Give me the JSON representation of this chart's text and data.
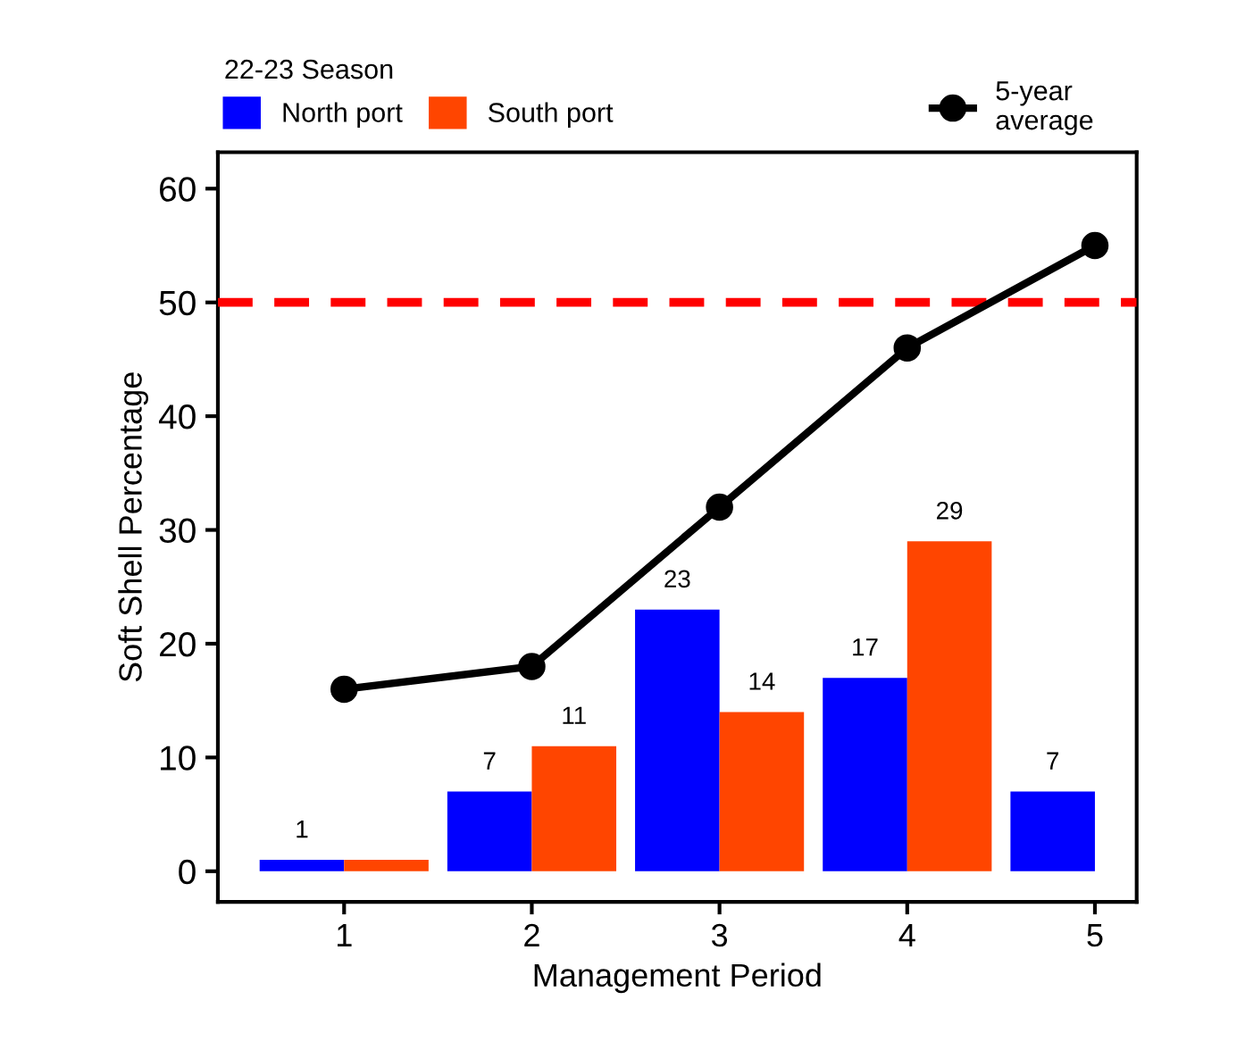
{
  "chart_data": {
    "type": "bar",
    "xlabel": "Management Period",
    "ylabel": "Soft Shell Percentage",
    "legend_title": "22-23 Season",
    "categories": [
      "1",
      "2",
      "3",
      "4",
      "5"
    ],
    "series": [
      {
        "name": "North port",
        "color": "#0000ff",
        "values": [
          1,
          7,
          23,
          17,
          7
        ],
        "value_labels": [
          "1",
          "7",
          "23",
          "17",
          "7"
        ]
      },
      {
        "name": "South port",
        "color": "#ff4500",
        "values": [
          1,
          11,
          14,
          29,
          null
        ],
        "value_labels": [
          null,
          "11",
          "14",
          "29",
          null
        ]
      },
      {
        "name": "5-year\naverage",
        "type": "line",
        "color": "#000000",
        "marker": "circle",
        "values": [
          16,
          18,
          32,
          46,
          55
        ]
      }
    ],
    "ylim": [
      -2.7,
      63.2
    ],
    "yticks": [
      0,
      10,
      20,
      30,
      40,
      50,
      60
    ],
    "ref_lines": [
      {
        "axis": "y",
        "value": 50,
        "color": "#ff0000",
        "line_style": "dashed"
      }
    ],
    "legend": "top",
    "grid": false
  }
}
